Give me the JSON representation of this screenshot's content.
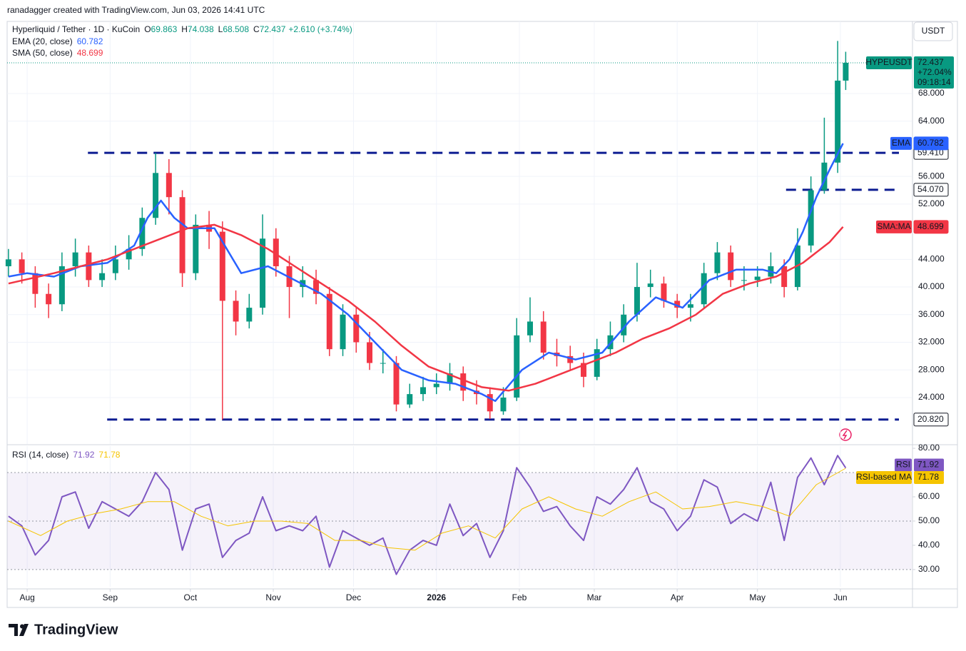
{
  "watermark": "ranadagger created with TradingView.com, Jun 03, 2026 14:41 UTC",
  "logo": "TradingView",
  "chart_data": [
    {
      "type": "candlestick",
      "title": "Hyperliquid / Tether · 1D · KuCoin",
      "ohlc": [
        {
          "label": "O",
          "value": 69.863
        },
        {
          "label": "H",
          "value": 74.038
        },
        {
          "label": "L",
          "value": 68.508
        },
        {
          "label": "C",
          "value": 72.437
        }
      ],
      "change": "+2.610 (+3.74%)",
      "up_color": "#089981",
      "down_color": "#f23645",
      "symbol": "HYPEUSDT",
      "last": 72.437,
      "last_change": "+72.04%",
      "countdown": "09:18:14",
      "currency": "USDT",
      "xlim": [
        -7.5,
        330.7
      ],
      "xticks": [
        {
          "value": 0,
          "label": "Aug"
        },
        {
          "value": 31,
          "label": "Sep"
        },
        {
          "value": 61,
          "label": "Oct"
        },
        {
          "value": 92,
          "label": "Nov"
        },
        {
          "value": 122,
          "label": "Dec"
        },
        {
          "value": 153,
          "label": "2026",
          "bold": true
        },
        {
          "value": 184,
          "label": "Feb"
        },
        {
          "value": 212,
          "label": "Mar"
        },
        {
          "value": 243,
          "label": "Apr"
        },
        {
          "value": 273,
          "label": "May"
        },
        {
          "value": 304,
          "label": "Jun"
        }
      ],
      "ylim": [
        17.28,
        78.43
      ],
      "yticks": [
        {
          "value": 24,
          "label": "24.000"
        },
        {
          "value": 28,
          "label": "28.000"
        },
        {
          "value": 32,
          "label": "32.000"
        },
        {
          "value": 36,
          "label": "36.000"
        },
        {
          "value": 40,
          "label": "40.000"
        },
        {
          "value": 44,
          "label": "44.000"
        },
        {
          "value": 52,
          "label": "52.000"
        },
        {
          "value": 56,
          "label": "56.000"
        },
        {
          "value": 64,
          "label": "64.000"
        },
        {
          "value": 68,
          "label": "68.000"
        }
      ],
      "grid": true,
      "candles": {
        "x": [
          -7,
          -2,
          3,
          8,
          13,
          18,
          23,
          28,
          33,
          38,
          43,
          48,
          53,
          58,
          63,
          68,
          73,
          78,
          83,
          88,
          93,
          98,
          103,
          108,
          113,
          118,
          123,
          128,
          133,
          138,
          143,
          148,
          153,
          158,
          163,
          168,
          173,
          178,
          183,
          188,
          193,
          198,
          203,
          208,
          213,
          218,
          223,
          228,
          233,
          238,
          243,
          248,
          253,
          258,
          263,
          268,
          273,
          278,
          283,
          288,
          293,
          298,
          303,
          306
        ],
        "open": [
          43,
          44,
          42,
          39,
          37.5,
          43,
          45,
          41,
          42,
          44,
          45.5,
          50,
          56.5,
          53,
          42,
          49,
          48,
          38,
          35,
          37,
          47,
          43,
          40,
          41,
          39,
          31,
          36,
          32,
          29,
          29,
          23,
          24.5,
          25.5,
          26,
          27.5,
          25,
          24.5,
          22,
          24,
          33,
          35,
          30.5,
          30,
          29,
          27,
          31,
          33,
          36,
          40,
          40.5,
          38,
          37,
          37.5,
          42,
          45,
          41,
          41,
          41.5,
          43,
          40,
          46,
          54,
          58,
          69.863
        ],
        "high": [
          45.5,
          45,
          43,
          40.5,
          45,
          47,
          46,
          44,
          46,
          47.5,
          51.5,
          59.4,
          58.5,
          54,
          50.5,
          51,
          49.5,
          39.5,
          39,
          50.5,
          48.5,
          44.5,
          43,
          42.5,
          40,
          37.5,
          37,
          33.5,
          31,
          30,
          26,
          27,
          27.5,
          29,
          28.5,
          26.5,
          25.5,
          25.5,
          35.5,
          38.5,
          36.5,
          32.5,
          31.5,
          30.5,
          32.5,
          35,
          37.5,
          43.5,
          42.5,
          41.5,
          39,
          39,
          43.5,
          46.5,
          46,
          43,
          43,
          45,
          44,
          48.5,
          56,
          64.5,
          75.6,
          74.038
        ],
        "low": [
          41.5,
          40.5,
          37,
          35.5,
          36.5,
          41.5,
          40,
          40,
          41,
          42.5,
          44.5,
          49,
          50.5,
          40,
          41,
          45.5,
          20.82,
          33,
          34,
          36,
          41.5,
          35.5,
          38.5,
          37.5,
          30,
          30,
          30.5,
          28,
          27.5,
          22,
          22.5,
          23.5,
          24.5,
          25,
          23.5,
          23,
          20.9,
          21.5,
          23.5,
          32,
          29.5,
          28.5,
          28,
          25.5,
          26.5,
          30,
          32,
          35,
          38.5,
          37,
          35.5,
          35,
          37,
          41,
          40,
          39.5,
          40,
          40.5,
          38.5,
          39.5,
          45,
          53.5,
          56.5,
          68.508
        ],
        "close": [
          44,
          42,
          39,
          37.5,
          43,
          45,
          41,
          42,
          44,
          45.5,
          50,
          56.5,
          53,
          42,
          49,
          48,
          38,
          35,
          37,
          47,
          43,
          40,
          41,
          39,
          31,
          36,
          32,
          29,
          29,
          23,
          24.5,
          25.5,
          26,
          27.5,
          25,
          24.5,
          22,
          24,
          33,
          35,
          30.5,
          30,
          29,
          27,
          31,
          33,
          36,
          40,
          40.5,
          38,
          37,
          37.5,
          42,
          45,
          41,
          41,
          41.5,
          43,
          40,
          46,
          54,
          58,
          69.863,
          72.437
        ]
      },
      "indicators": [
        {
          "name": "EMA (20, close)",
          "tag": "EMA",
          "value": 60.782,
          "color": "#2962ff",
          "x": [
            -7,
            0,
            10,
            20,
            30,
            40,
            45,
            50,
            55,
            60,
            70,
            80,
            90,
            100,
            110,
            120,
            130,
            140,
            150,
            160,
            170,
            175,
            185,
            195,
            205,
            215,
            225,
            235,
            245,
            255,
            265,
            275,
            280,
            285,
            290,
            295,
            300,
            305
          ],
          "values": [
            41.5,
            42,
            41.5,
            43,
            43.5,
            46,
            50,
            52.5,
            50,
            48.5,
            48.5,
            42,
            43,
            41,
            39,
            36,
            32,
            28,
            26.5,
            26,
            24.5,
            23.5,
            28,
            30.5,
            29.5,
            30.5,
            35,
            38.5,
            37,
            41,
            42.5,
            42.5,
            42,
            44,
            48,
            53,
            57,
            60.782
          ]
        },
        {
          "name": "SMA (50, close)",
          "tag": "SMA:MA",
          "value": 48.699,
          "color": "#f23645",
          "x": [
            -7,
            10,
            30,
            50,
            60,
            70,
            80,
            90,
            100,
            110,
            120,
            130,
            140,
            150,
            160,
            170,
            180,
            190,
            200,
            210,
            220,
            230,
            240,
            250,
            260,
            270,
            280,
            290,
            300,
            305
          ],
          "values": [
            40.5,
            42,
            44,
            47,
            48.5,
            49,
            47.5,
            45.5,
            43,
            40.5,
            38,
            35,
            31.5,
            28.5,
            27,
            25.5,
            25,
            26,
            27.5,
            29,
            30.5,
            32.5,
            34,
            36,
            39,
            40.5,
            41.5,
            43.5,
            46.5,
            48.699
          ]
        }
      ],
      "levels": [
        {
          "value": 59.41,
          "label": "59.410",
          "x_start": 22.7,
          "color": "#0c1c91"
        },
        {
          "value": 54.07,
          "label": "54.070",
          "x_start": 283.7,
          "color": "#0c1c91"
        },
        {
          "value": 20.82,
          "label": "20.820",
          "x_start": 29.9,
          "color": "#0c1c91"
        }
      ]
    },
    {
      "type": "line",
      "title": "RSI (14, close)",
      "ylim": [
        22.9,
        80.9
      ],
      "yticks": [
        {
          "value": 30,
          "label": "30.00"
        },
        {
          "value": 40,
          "label": "40.00"
        },
        {
          "value": 50,
          "label": "50.00"
        },
        {
          "value": 60,
          "label": "60.00"
        },
        {
          "value": 80,
          "label": "80.00"
        }
      ],
      "levels": [
        70,
        50,
        30
      ],
      "band_color": "#7e57c2",
      "series": [
        {
          "name": "RSI",
          "color": "#7e57c2",
          "last": 71.92,
          "x": [
            -7,
            -2,
            3,
            8,
            13,
            18,
            23,
            28,
            33,
            38,
            43,
            48,
            53,
            58,
            63,
            68,
            73,
            78,
            83,
            88,
            93,
            98,
            103,
            108,
            113,
            118,
            123,
            128,
            133,
            138,
            143,
            148,
            153,
            158,
            163,
            168,
            173,
            178,
            183,
            188,
            193,
            198,
            203,
            208,
            213,
            218,
            223,
            228,
            233,
            238,
            243,
            248,
            253,
            258,
            263,
            268,
            273,
            278,
            283,
            288,
            293,
            298,
            303,
            306
          ],
          "values": [
            52,
            48,
            36,
            42,
            60,
            62,
            47,
            58,
            55,
            52,
            58,
            70,
            63,
            38,
            55,
            57,
            35,
            42,
            45,
            60,
            46,
            48,
            46,
            52,
            31,
            46,
            43,
            40,
            43,
            28,
            38,
            42,
            40,
            57,
            44,
            49,
            35,
            46,
            72,
            64,
            54,
            56,
            48,
            42,
            60,
            57,
            63,
            72,
            58,
            55,
            46,
            52,
            67,
            64,
            49,
            53,
            50,
            66,
            42,
            68,
            76,
            65,
            77,
            71.92
          ]
        },
        {
          "name": "RSI-based MA",
          "color": "#f5c400",
          "last": 71.78,
          "x": [
            -7,
            5,
            15,
            25,
            35,
            45,
            55,
            65,
            75,
            85,
            95,
            105,
            115,
            125,
            135,
            145,
            155,
            165,
            175,
            185,
            195,
            205,
            215,
            225,
            235,
            245,
            255,
            265,
            275,
            285,
            295,
            306
          ],
          "values": [
            50,
            44,
            50,
            53,
            55,
            58,
            58,
            52,
            48,
            50,
            50,
            49,
            42,
            42,
            39,
            38,
            45,
            48,
            43,
            55,
            60,
            55,
            52,
            58,
            62,
            55,
            56,
            58,
            56,
            52,
            65,
            71.78
          ]
        }
      ]
    }
  ]
}
